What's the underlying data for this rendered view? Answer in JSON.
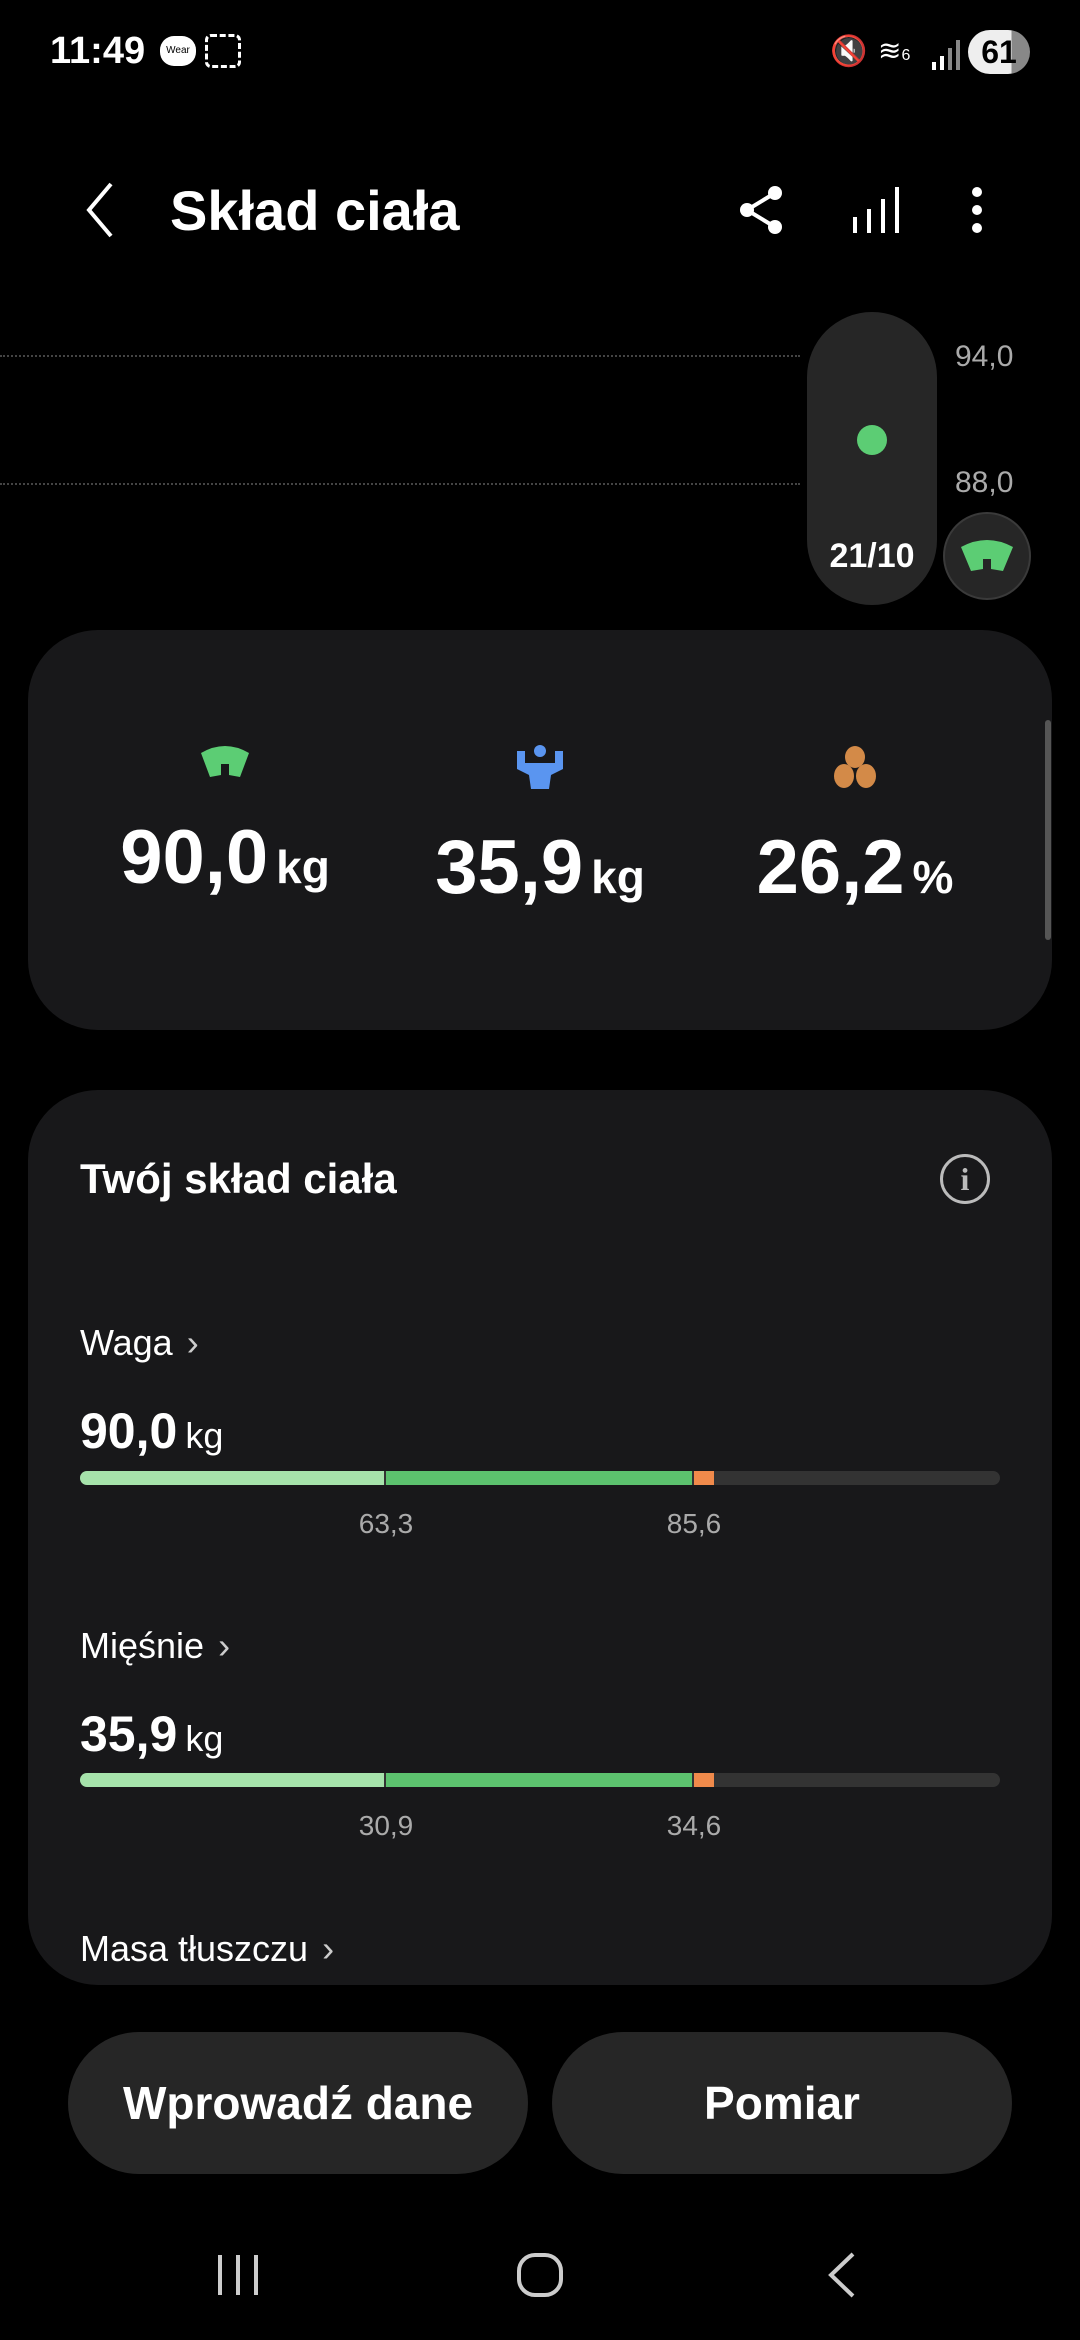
{
  "status_bar": {
    "time": "11:49",
    "wear_badge": "Wear",
    "battery": "61",
    "wifi_label": "6"
  },
  "header": {
    "title": "Skład ciała"
  },
  "trend": {
    "y_labels": [
      "94,0",
      "88,0"
    ],
    "selected_date": "21/10",
    "selected_value": 90.0
  },
  "summary": {
    "metrics": [
      {
        "icon": "scale-icon",
        "value": "90,0",
        "unit": "kg",
        "color": "#5ccd74"
      },
      {
        "icon": "muscle-icon",
        "value": "35,9",
        "unit": "kg",
        "color": "#5a95f0"
      },
      {
        "icon": "fat-icon",
        "value": "26,2",
        "unit": "%",
        "color": "#d38a48"
      }
    ]
  },
  "composition": {
    "title": "Twój skład ciała",
    "rows": [
      {
        "label": "Waga",
        "value": "90,0",
        "unit": "kg",
        "ticks": [
          "63,3",
          "85,6"
        ],
        "chevron": "›"
      },
      {
        "label": "Mięśnie",
        "value": "35,9",
        "unit": "kg",
        "ticks": [
          "30,9",
          "34,6"
        ],
        "chevron": "›"
      },
      {
        "label": "Masa tłuszczu",
        "chevron": "›"
      }
    ]
  },
  "colors": {
    "low": "#a6e3ab",
    "normal": "#5cc26e",
    "high": "#f08a4b",
    "track": "#333333"
  },
  "actions": {
    "enter_data": "Wprowadź dane",
    "measure": "Pomiar"
  }
}
